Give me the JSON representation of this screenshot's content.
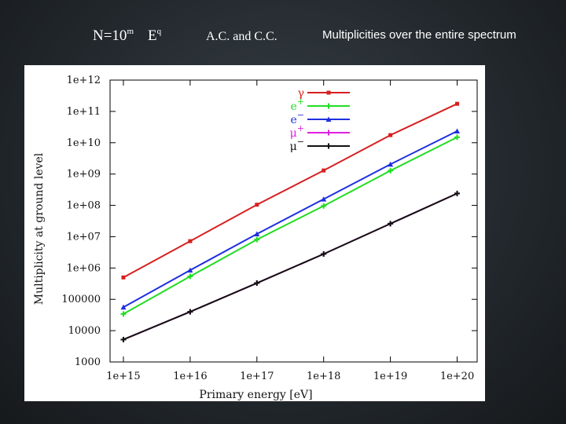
{
  "header": {
    "formula": {
      "base": "N=10",
      "exp_n": "m",
      "e": "E",
      "exp_e": "q"
    },
    "ac": "A.C. and C.C.",
    "title": "Multiplicities over the entire spectrum"
  },
  "chart_data": {
    "type": "line",
    "title": "",
    "xlabel": "Primary energy [eV]",
    "ylabel": "Multiplicity at ground level",
    "x": [
      1000000000000000.0,
      1e+16,
      1e+17,
      1e+18,
      1e+19,
      1e+20
    ],
    "xlim_log10": [
      14.8,
      20.3
    ],
    "ylim_log10": [
      3,
      12
    ],
    "x_ticks": [
      "1e+15",
      "1e+16",
      "1e+17",
      "1e+18",
      "1e+19",
      "1e+20"
    ],
    "y_ticks": [
      "1000",
      "10000",
      "100000",
      "1e+06",
      "1e+07",
      "1e+08",
      "1e+09",
      "1e+10",
      "1e+11",
      "1e+12"
    ],
    "legend_position": "top-center",
    "series": [
      {
        "name": "γ",
        "sup": "",
        "color": "#d62020",
        "marker": "square",
        "values": [
          500000.0,
          7200000.0,
          105000000.0,
          1300000000.0,
          17500000000.0,
          175000000000.0
        ]
      },
      {
        "name": "e",
        "sup": "+",
        "color": "#22dd22",
        "marker": "plus",
        "values": [
          34000.0,
          540000.0,
          8100000.0,
          96000000.0,
          1280000000.0,
          15000000000.0
        ]
      },
      {
        "name": "e",
        "sup": "−",
        "color": "#1f2fe0",
        "marker": "triangle",
        "values": [
          56000.0,
          850000.0,
          12200000.0,
          158000000.0,
          2050000000.0,
          23500000000.0
        ]
      },
      {
        "name": "μ",
        "sup": "+",
        "color": "#e020e0",
        "marker": "plus",
        "values": [
          5200.0,
          40000.0,
          330000.0,
          2800000.0,
          26000000.0,
          240000000.0
        ]
      },
      {
        "name": "μ",
        "sup": "−",
        "color": "#111111",
        "marker": "plus",
        "values": [
          5200.0,
          40000.0,
          330000.0,
          2800000.0,
          26000000.0,
          240000000.0
        ]
      }
    ]
  }
}
